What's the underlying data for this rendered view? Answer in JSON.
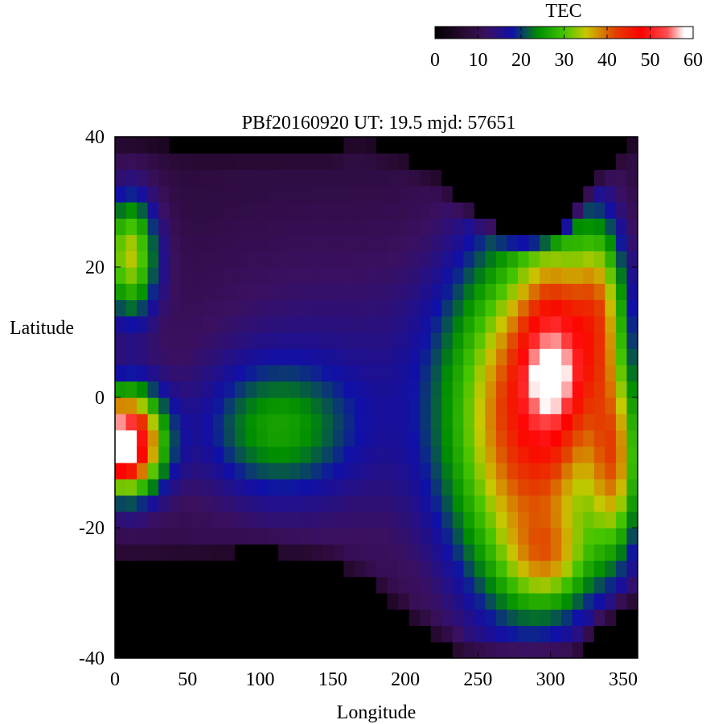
{
  "chart_data": {
    "type": "heatmap",
    "title": "PBf20160920  UT: 19.5  mjd: 57651",
    "xlabel": "Longitude",
    "ylabel": "Latitude",
    "xlim": [
      0,
      360
    ],
    "ylim": [
      -40,
      40
    ],
    "x_ticks": [
      0,
      50,
      100,
      150,
      200,
      250,
      300,
      350
    ],
    "y_ticks": [
      -40,
      -20,
      0,
      20,
      40
    ],
    "x_tick_labels": [
      "0",
      "50",
      "100",
      "150",
      "200",
      "250",
      "300",
      "350"
    ],
    "y_tick_labels": [
      "-40",
      "-20",
      "0",
      "20",
      "40"
    ],
    "colorbar": {
      "label": "TEC",
      "range": [
        0,
        60
      ],
      "ticks": [
        0,
        10,
        20,
        30,
        40,
        50,
        60
      ],
      "tick_labels": [
        "0",
        "10",
        "20",
        "30",
        "40",
        "50",
        "60"
      ],
      "colormap": [
        {
          "value": 0,
          "color": "#000000"
        },
        {
          "value": 7,
          "color": "#2a0a35"
        },
        {
          "value": 12,
          "color": "#3a1060"
        },
        {
          "value": 18,
          "color": "#1010a8"
        },
        {
          "value": 24,
          "color": "#008e00"
        },
        {
          "value": 30,
          "color": "#44c400"
        },
        {
          "value": 35,
          "color": "#c8c800"
        },
        {
          "value": 42,
          "color": "#e33e00"
        },
        {
          "value": 48,
          "color": "#ff0000"
        },
        {
          "value": 54,
          "color": "#ff5050"
        },
        {
          "value": 58,
          "color": "#ffffff"
        },
        {
          "value": 60,
          "color": "#ffffff"
        }
      ]
    },
    "grid": {
      "lon_start": 0,
      "lon_end": 360,
      "lon_step": 7.5,
      "lat_start": -40,
      "lat_end": 40,
      "lat_step": 2.5
    },
    "tec_model": {
      "background": 7,
      "dark_region": {
        "north_boundary": [
          [
            0,
            40
          ],
          [
            60,
            38
          ],
          [
            120,
            38
          ],
          [
            150,
            38
          ],
          [
            165,
            40
          ],
          [
            200,
            37
          ],
          [
            220,
            34
          ],
          [
            235,
            31
          ],
          [
            250,
            28
          ],
          [
            270,
            25.5
          ],
          [
            285,
            24.5
          ],
          [
            300,
            25.5
          ],
          [
            315,
            28
          ],
          [
            330,
            33
          ],
          [
            345,
            37
          ],
          [
            360,
            40
          ]
        ],
        "south_boundary": [
          [
            0,
            -25.5
          ],
          [
            30,
            -25
          ],
          [
            50,
            -24.5
          ],
          [
            70,
            -24
          ],
          [
            100,
            -23.5
          ],
          [
            130,
            -24
          ],
          [
            150,
            -25
          ],
          [
            165,
            -27
          ],
          [
            185,
            -30
          ],
          [
            205,
            -34
          ],
          [
            225,
            -37
          ],
          [
            240,
            -39.5
          ],
          [
            255,
            -40
          ],
          [
            270,
            -40
          ],
          [
            285,
            -40
          ],
          [
            300,
            -40
          ],
          [
            315,
            -40
          ],
          [
            330,
            -36
          ],
          [
            345,
            -33
          ],
          [
            360,
            -31
          ]
        ]
      },
      "blobs": [
        {
          "lon": 150,
          "lat": 0,
          "rlon": 135,
          "rlat": 28,
          "amp": 8
        },
        {
          "lon": 110,
          "lat": -5,
          "rlon": 50,
          "rlat": 10,
          "amp": 12
        },
        {
          "lon": 10,
          "lat": 22,
          "rlon": 20,
          "rlat": 10,
          "amp": 26
        },
        {
          "lon": 8,
          "lat": -7,
          "rlon": 25,
          "rlat": 8,
          "amp": 46
        },
        {
          "lon": 2,
          "lat": -7,
          "rlon": 10,
          "rlat": 4,
          "amp": 16
        },
        {
          "lon": 285,
          "lat": -4,
          "rlon": 55,
          "rlat": 30,
          "amp": 34
        },
        {
          "lon": 305,
          "lat": 8,
          "rlon": 25,
          "rlat": 16,
          "amp": 18
        },
        {
          "lon": 335,
          "lat": 15,
          "rlon": 18,
          "rlat": 14,
          "amp": 18
        },
        {
          "lon": 345,
          "lat": -10,
          "rlon": 18,
          "rlat": 15,
          "amp": 22
        },
        {
          "lon": 300,
          "lat": -25,
          "rlon": 30,
          "rlat": 7,
          "amp": 12
        },
        {
          "lon": 300,
          "lat": 3,
          "rlon": 15,
          "rlat": 5,
          "amp": 10
        }
      ]
    }
  }
}
